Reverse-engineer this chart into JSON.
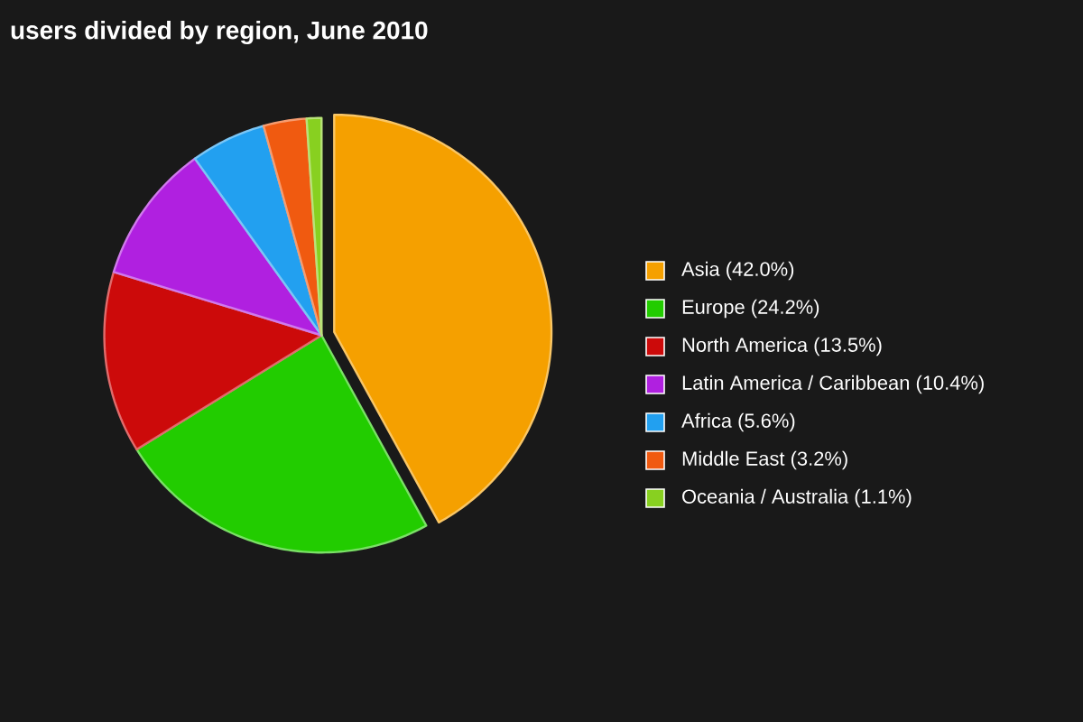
{
  "chart_data": {
    "type": "pie",
    "title": "users divided by region, June 2010",
    "categories": [
      "Asia (42.0%)",
      "Europe (24.2%)",
      "North America (13.5%)",
      "Latin America / Caribbean (10.4%)",
      "Africa (5.6%)",
      "Middle East (3.2%)",
      "Oceania / Australia (1.1%)"
    ],
    "values": [
      42.0,
      24.2,
      13.5,
      10.4,
      5.6,
      3.2,
      1.1
    ],
    "colors": [
      "#f5a000",
      "#22cc00",
      "#cc0a0a",
      "#b020e0",
      "#22a0f0",
      "#f05a10",
      "#88d020"
    ],
    "legend": "right"
  }
}
